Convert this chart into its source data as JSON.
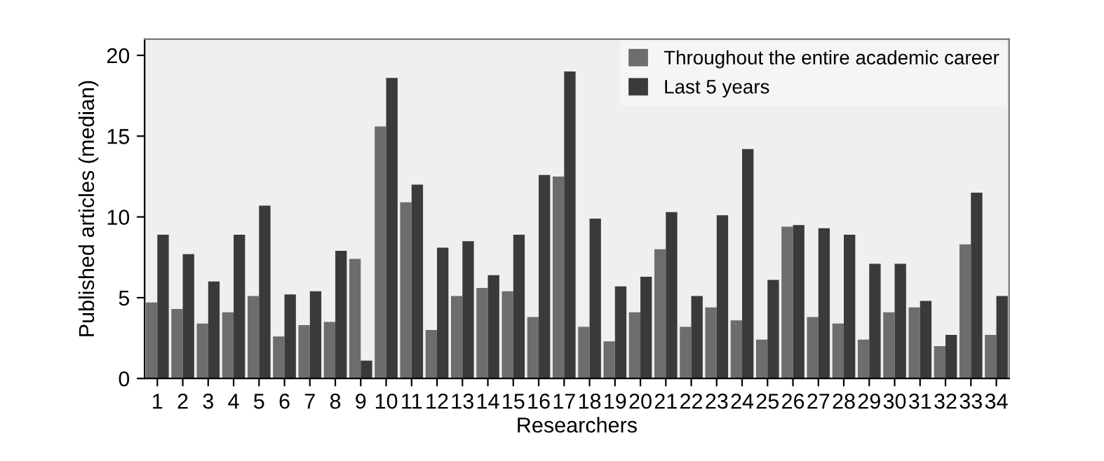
{
  "chart_data": {
    "type": "bar",
    "xlabel": "Researchers",
    "ylabel": "Published articles (median)",
    "categories": [
      "1",
      "2",
      "3",
      "4",
      "5",
      "6",
      "7",
      "8",
      "9",
      "10",
      "11",
      "12",
      "13",
      "14",
      "15",
      "16",
      "17",
      "18",
      "19",
      "20",
      "21",
      "22",
      "23",
      "24",
      "25",
      "26",
      "27",
      "28",
      "29",
      "30",
      "31",
      "32",
      "33",
      "34"
    ],
    "series": [
      {
        "name": "Throughout the entire academic career",
        "color": "#6d6d70",
        "values": [
          4.7,
          4.3,
          3.4,
          4.1,
          5.1,
          2.6,
          3.3,
          3.5,
          7.4,
          15.6,
          10.9,
          3.0,
          5.1,
          5.6,
          5.4,
          3.8,
          12.5,
          3.2,
          2.3,
          4.1,
          8.0,
          3.2,
          4.4,
          3.6,
          2.4,
          9.4,
          3.8,
          3.4,
          2.4,
          4.1,
          4.4,
          2.0,
          8.3,
          2.7
        ]
      },
      {
        "name": "Last 5 years",
        "color": "#3a3a3a",
        "values": [
          8.9,
          7.7,
          6.0,
          8.9,
          10.7,
          5.2,
          5.4,
          7.9,
          1.1,
          18.6,
          12.0,
          8.1,
          8.5,
          6.4,
          8.9,
          12.6,
          19.0,
          9.9,
          5.7,
          6.3,
          10.3,
          5.1,
          10.1,
          14.2,
          6.1,
          9.5,
          9.3,
          8.9,
          7.1,
          7.1,
          4.8,
          2.7,
          11.5,
          5.1
        ]
      }
    ],
    "ylim": [
      0,
      21
    ],
    "yticks": [
      0,
      5,
      10,
      15,
      20
    ],
    "grid": false,
    "legend": "top right"
  }
}
